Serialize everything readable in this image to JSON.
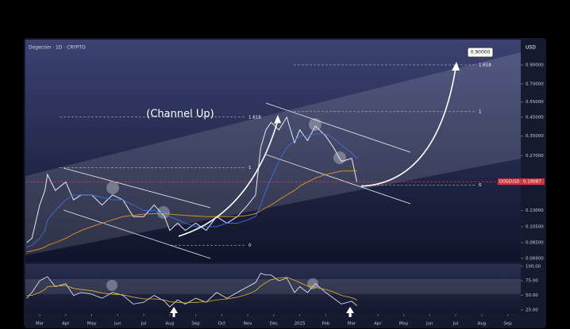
{
  "chart_data": {
    "type": "line",
    "title": "Dogecoin · 1D · CRYPTO",
    "currency": "USD",
    "annotation": "(Channel Up)",
    "symbol": "DOGEUSD",
    "log_scale": true,
    "grid": false,
    "x": [
      -0.5,
      -0.3,
      0,
      0.2,
      0.3,
      0.6,
      1,
      1.3,
      1.6,
      2,
      2.4,
      2.8,
      3.2,
      3.6,
      4,
      4.4,
      4.8,
      5,
      5.3,
      5.6,
      6,
      6.4,
      6.8,
      7.2,
      7.6,
      8,
      8.3,
      8.5,
      8.7,
      8.9,
      9.2,
      9.5,
      9.8,
      10,
      10.3,
      10.6,
      11,
      11.3,
      11.6,
      12,
      12.2
    ],
    "xlim": [
      -0.55,
      18.5
    ],
    "xticks": [
      {
        "value": 0,
        "label": "Mar"
      },
      {
        "value": 1,
        "label": "Apr"
      },
      {
        "value": 2,
        "label": "May"
      },
      {
        "value": 3,
        "label": "Jun"
      },
      {
        "value": 4,
        "label": "Jul"
      },
      {
        "value": 5,
        "label": "Aug"
      },
      {
        "value": 6,
        "label": "Sep"
      },
      {
        "value": 7,
        "label": "Oct"
      },
      {
        "value": 8,
        "label": "Nov"
      },
      {
        "value": 9,
        "label": "Dec"
      },
      {
        "value": 10,
        "label": "2025"
      },
      {
        "value": 11,
        "label": "Feb"
      },
      {
        "value": 12,
        "label": "Mar"
      },
      {
        "value": 13,
        "label": "Apr"
      },
      {
        "value": 14,
        "label": "May"
      },
      {
        "value": 15,
        "label": "Jun"
      },
      {
        "value": 16,
        "label": "Jul"
      },
      {
        "value": 17,
        "label": "Aug"
      },
      {
        "value": 18,
        "label": "Sep"
      }
    ],
    "ylim": [
      0.066,
      1.26
    ],
    "yticks": [
      {
        "value": 0.9,
        "label": "0.90000"
      },
      {
        "value": 0.7,
        "label": "0.70000"
      },
      {
        "value": 0.55,
        "label": "0.55000"
      },
      {
        "value": 0.45,
        "label": "0.45000"
      },
      {
        "value": 0.35,
        "label": "0.35000"
      },
      {
        "value": 0.27,
        "label": "0.27000"
      },
      {
        "value": 0.13,
        "label": "0.13000"
      },
      {
        "value": 0.105,
        "label": "0.10500"
      },
      {
        "value": 0.085,
        "label": "0.08500"
      },
      {
        "value": 0.069,
        "label": "0.06900"
      }
    ],
    "last_price": {
      "value": 0.19087,
      "label": "0.19087"
    },
    "target": {
      "value": 0.9,
      "label": "0.90000"
    },
    "series": [
      {
        "color": "#e8e8ee",
        "values": [
          0.085,
          0.09,
          0.14,
          0.17,
          0.21,
          0.17,
          0.19,
          0.15,
          0.16,
          0.16,
          0.14,
          0.16,
          0.15,
          0.12,
          0.12,
          0.14,
          0.12,
          0.1,
          0.11,
          0.1,
          0.11,
          0.1,
          0.12,
          0.11,
          0.12,
          0.14,
          0.16,
          0.3,
          0.38,
          0.42,
          0.38,
          0.45,
          0.32,
          0.38,
          0.33,
          0.4,
          0.35,
          0.3,
          0.25,
          0.26,
          0.19
        ]
      },
      {
        "color": "#3d6fe0",
        "values": [
          0.08,
          0.082,
          0.09,
          0.1,
          0.115,
          0.13,
          0.15,
          0.16,
          0.16,
          0.16,
          0.155,
          0.15,
          0.15,
          0.14,
          0.13,
          0.13,
          0.125,
          0.12,
          0.115,
          0.11,
          0.105,
          0.105,
          0.105,
          0.11,
          0.11,
          0.115,
          0.12,
          0.14,
          0.17,
          0.2,
          0.25,
          0.3,
          0.33,
          0.35,
          0.35,
          0.36,
          0.36,
          0.34,
          0.31,
          0.28,
          0.26
        ]
      },
      {
        "color": "#e0962a",
        "values": [
          0.075,
          0.076,
          0.078,
          0.08,
          0.082,
          0.085,
          0.09,
          0.095,
          0.1,
          0.105,
          0.11,
          0.115,
          0.12,
          0.122,
          0.124,
          0.125,
          0.125,
          0.124,
          0.123,
          0.122,
          0.121,
          0.12,
          0.12,
          0.12,
          0.12,
          0.122,
          0.125,
          0.13,
          0.135,
          0.14,
          0.15,
          0.16,
          0.17,
          0.18,
          0.19,
          0.2,
          0.21,
          0.215,
          0.22,
          0.22,
          0.22
        ]
      }
    ],
    "fib_sets": [
      [
        {
          "value": 0.45,
          "label": "1.618"
        },
        {
          "value": 0.23,
          "label": "1"
        },
        {
          "value": 0.082,
          "label": "0"
        }
      ],
      [
        {
          "value": 0.9,
          "label": "1.618"
        },
        {
          "value": 0.484,
          "label": "1"
        },
        {
          "value": 0.182,
          "label": "0"
        }
      ]
    ],
    "rsi_ylim": [
      18,
      104
    ],
    "rsi_yticks": [
      {
        "value": 100,
        "label": "100.00"
      },
      {
        "value": 75,
        "label": "75.00"
      },
      {
        "value": 50,
        "label": "50.00"
      },
      {
        "value": 25,
        "label": "25.00"
      }
    ],
    "rsi_series": [
      {
        "color": "#f2f2f2",
        "values": [
          45,
          55,
          75,
          80,
          82,
          65,
          70,
          50,
          55,
          52,
          45,
          55,
          50,
          35,
          38,
          50,
          40,
          30,
          42,
          35,
          45,
          38,
          55,
          45,
          55,
          65,
          72,
          88,
          85,
          85,
          75,
          80,
          55,
          65,
          55,
          70,
          55,
          45,
          35,
          40,
          32
        ]
      },
      {
        "color": "#e0b52a",
        "values": [
          50,
          50,
          55,
          60,
          65,
          66,
          67,
          62,
          60,
          58,
          54,
          52,
          51,
          47,
          44,
          44,
          42,
          39,
          38,
          37,
          38,
          39,
          42,
          44,
          47,
          52,
          58,
          66,
          72,
          77,
          80,
          81,
          76,
          72,
          66,
          64,
          60,
          56,
          50,
          46,
          42
        ]
      }
    ]
  }
}
